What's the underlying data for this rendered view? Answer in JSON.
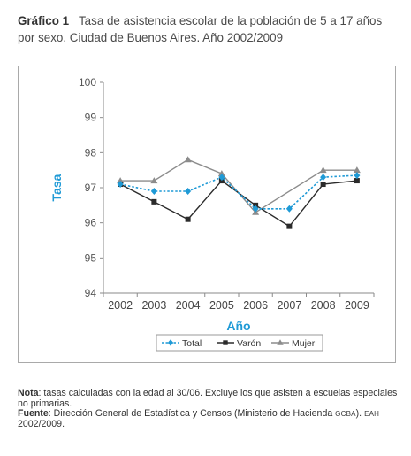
{
  "figure": {
    "label": "Gráfico 1",
    "title": "Tasa de asistencia escolar de la población de 5 a 17 años por sexo. Ciudad de Buenos Aires. Año 2002/2009"
  },
  "chart_data": {
    "type": "line",
    "title": "",
    "xlabel": "Año",
    "ylabel": "Tasa",
    "categories": [
      "2002",
      "2003",
      "2004",
      "2005",
      "2006",
      "2007",
      "2008",
      "2009"
    ],
    "ylim": [
      94,
      100
    ],
    "yticks": [
      "94",
      "95",
      "96",
      "97",
      "98",
      "99",
      "100"
    ],
    "grid": false,
    "legend_position": "bottom",
    "series": [
      {
        "name": "Total",
        "values": [
          97.1,
          96.9,
          96.9,
          97.3,
          96.4,
          96.4,
          97.3,
          97.35
        ],
        "color": "#1f9ad6",
        "dash": "dotted",
        "marker": "diamond"
      },
      {
        "name": "Varón",
        "values": [
          97.1,
          96.6,
          96.1,
          97.2,
          96.5,
          95.9,
          97.1,
          97.2
        ],
        "color": "#2b2b2b",
        "dash": "solid",
        "marker": "square"
      },
      {
        "name": "Mujer",
        "values": [
          97.2,
          97.2,
          97.8,
          97.4,
          96.3,
          null,
          97.5,
          97.5
        ],
        "color": "#8c8c8c",
        "dash": "solid",
        "marker": "triangle"
      }
    ],
    "axis_label_color": "#1f9ad6"
  },
  "notes": {
    "nota_label": "Nota",
    "nota_text": ": tasas calculadas con la edad al 30/06. Excluye los que asisten a escuelas especiales no primarias.",
    "fuente_label": "Fuente",
    "fuente_text_1": ": Dirección General de Estadística y Censos (Ministerio de Hacienda ",
    "fuente_sc_1": "GCBA",
    "fuente_text_2": "). ",
    "fuente_sc_2": "EAH",
    "fuente_text_3": " 2002/2009."
  }
}
